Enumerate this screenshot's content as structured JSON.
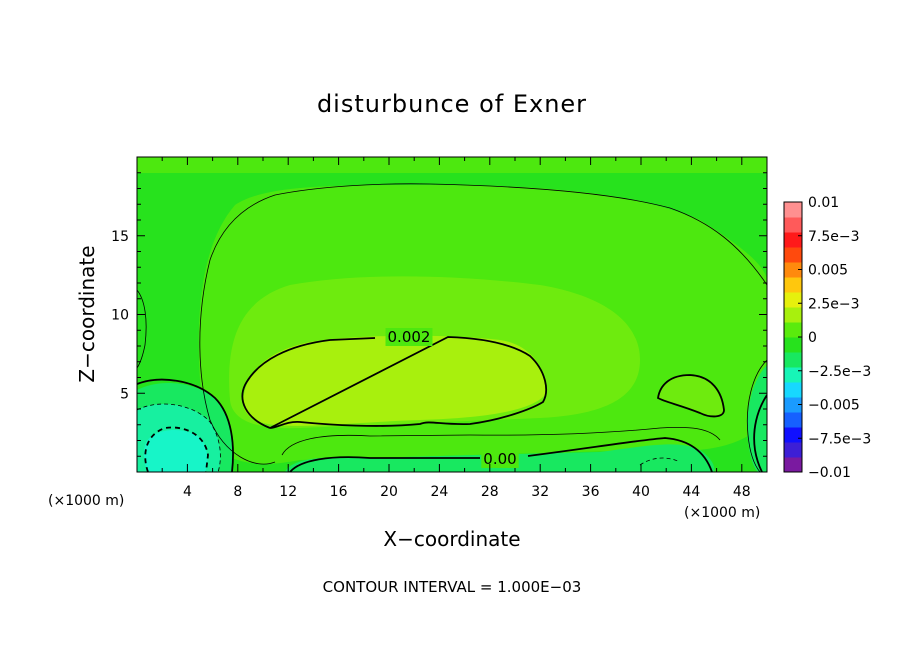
{
  "chart_data": {
    "type": "heatmap",
    "title": "disturbunce of Exner",
    "xlabel": "X−coordinate",
    "ylabel": "Z−coordinate",
    "x_unit": "(×1000 m)",
    "y_unit": "(×1000 m)",
    "xlim": [
      0,
      50
    ],
    "ylim": [
      0,
      20
    ],
    "x_ticks": [
      4,
      8,
      12,
      16,
      20,
      24,
      28,
      32,
      36,
      40,
      44,
      48
    ],
    "y_ticks": [
      5,
      10,
      15
    ],
    "footer": "CONTOUR INTERVAL = 1.000E−03",
    "colorbar": {
      "min": -0.01,
      "max": 0.01,
      "tick_values": [
        0.01,
        0.0075,
        0.005,
        0.0025,
        0,
        -0.0025,
        -0.005,
        -0.0075,
        -0.01
      ],
      "tick_labels": [
        "0.01",
        "7.5e−3",
        "0.005",
        "2.5e−3",
        "0",
        "−2.5e−3",
        "−0.005",
        "−7.5e−3",
        "−0.01"
      ],
      "colors": [
        "#7a1aa0",
        "#3d1fd6",
        "#1010ff",
        "#1660ff",
        "#1a9bff",
        "#17d8ff",
        "#17f5b7",
        "#18e860",
        "#27e21d",
        "#5aeb0d",
        "#a8f00d",
        "#e6f00d",
        "#ffc70d",
        "#ff8a0d",
        "#ff4a0d",
        "#ff1a1a",
        "#ff5a5a",
        "#ff9090"
      ]
    },
    "field_colors": {
      "background": "#27e21d",
      "positive_1": "#4de80f",
      "positive_2": "#6eeb0e",
      "positive_3": "#a8f00d",
      "negative_1": "#18e860",
      "negative_2": "#17f0a0",
      "negative_3": "#17f5c8"
    },
    "contour_labels": [
      {
        "text": "0.002",
        "x": 24,
        "y": 8.5
      },
      {
        "text": "0.00",
        "x": 29,
        "y": 0.8
      }
    ]
  }
}
